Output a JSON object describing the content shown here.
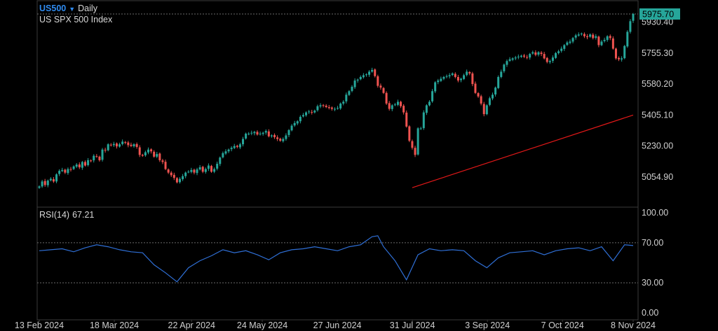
{
  "header": {
    "symbol": "US500",
    "symbol_arrow": "▼",
    "timeframe": "Daily",
    "instrument_name": "US SPX 500 Index"
  },
  "rsi_panel": {
    "label": "RSI(14)",
    "value": "67.21"
  },
  "colors": {
    "background": "#000000",
    "up_candle": "#26a69a",
    "down_candle": "#ef5350",
    "trend_line": "#e01818",
    "rsi_line": "#2f6fd6",
    "last_price_bg": "#26a69a",
    "grid_dotted": "#6a6a6a",
    "frame": "#3a3a3a",
    "symbol_blue": "#2f8bf0"
  },
  "chart_data": [
    {
      "type": "candlestick",
      "title": "",
      "ylim": [
        4990,
        6020
      ],
      "y_ticks": [
        "5930.40",
        "5755.30",
        "5580.20",
        "5405.10",
        "5230.00",
        "5054.90"
      ],
      "last_price": "5975.70",
      "x_ticks": [
        "13 Feb 2024",
        "18 Mar 2024",
        "22 Apr 2024",
        "24 May 2024",
        "27 Jun 2024",
        "31 Jul 2024",
        "3 Sep 2024",
        "7 Oct 2024",
        "8 Nov 2024"
      ],
      "x_tick_days": [
        0,
        34,
        69,
        101,
        135,
        169,
        203,
        237,
        269
      ],
      "closes": [
        [
          0,
          5002
        ],
        [
          1,
          5030
        ],
        [
          2,
          5010
        ],
        [
          3,
          5035
        ],
        [
          4,
          5045
        ],
        [
          5,
          5030
        ],
        [
          6,
          5070
        ],
        [
          7,
          5090
        ],
        [
          8,
          5095
        ],
        [
          9,
          5080
        ],
        [
          10,
          5100
        ],
        [
          11,
          5098
        ],
        [
          12,
          5115
        ],
        [
          13,
          5125
        ],
        [
          14,
          5110
        ],
        [
          15,
          5140
        ],
        [
          16,
          5120
        ],
        [
          17,
          5150
        ],
        [
          18,
          5148
        ],
        [
          19,
          5175
        ],
        [
          20,
          5170
        ],
        [
          21,
          5150
        ],
        [
          22,
          5210
        ],
        [
          23,
          5205
        ],
        [
          24,
          5240
        ],
        [
          25,
          5235
        ],
        [
          26,
          5242
        ],
        [
          27,
          5228
        ],
        [
          28,
          5240
        ],
        [
          29,
          5255
        ],
        [
          30,
          5250
        ],
        [
          31,
          5235
        ],
        [
          32,
          5230
        ],
        [
          33,
          5240
        ],
        [
          34,
          5225
        ],
        [
          35,
          5180
        ],
        [
          36,
          5175
        ],
        [
          37,
          5195
        ],
        [
          38,
          5210
        ],
        [
          39,
          5200
        ],
        [
          40,
          5170
        ],
        [
          41,
          5185
        ],
        [
          42,
          5150
        ],
        [
          43,
          5140
        ],
        [
          44,
          5100
        ],
        [
          45,
          5080
        ],
        [
          46,
          5065
        ],
        [
          47,
          5050
        ],
        [
          48,
          5025
        ],
        [
          49,
          5045
        ],
        [
          50,
          5060
        ],
        [
          51,
          5080
        ],
        [
          52,
          5085
        ],
        [
          53,
          5095
        ],
        [
          54,
          5080
        ],
        [
          55,
          5098
        ],
        [
          56,
          5110
        ],
        [
          57,
          5085
        ],
        [
          58,
          5100
        ],
        [
          59,
          5120
        ],
        [
          60,
          5085
        ],
        [
          61,
          5100
        ],
        [
          62,
          5130
        ],
        [
          63,
          5165
        ],
        [
          64,
          5190
        ],
        [
          65,
          5200
        ],
        [
          66,
          5210
        ],
        [
          67,
          5220
        ],
        [
          68,
          5230
        ],
        [
          69,
          5225
        ],
        [
          70,
          5240
        ],
        [
          71,
          5270
        ],
        [
          72,
          5300
        ],
        [
          73,
          5300
        ],
        [
          74,
          5305
        ],
        [
          75,
          5310
        ],
        [
          76,
          5295
        ],
        [
          77,
          5300
        ],
        [
          78,
          5305
        ],
        [
          79,
          5315
        ],
        [
          80,
          5285
        ],
        [
          81,
          5290
        ],
        [
          82,
          5280
        ],
        [
          83,
          5270
        ],
        [
          84,
          5260
        ],
        [
          85,
          5270
        ],
        [
          86,
          5290
        ],
        [
          87,
          5320
        ],
        [
          88,
          5345
        ],
        [
          89,
          5360
        ],
        [
          90,
          5370
        ],
        [
          91,
          5395
        ],
        [
          92,
          5405
        ],
        [
          93,
          5420
        ],
        [
          94,
          5425
        ],
        [
          95,
          5420
        ],
        [
          96,
          5430
        ],
        [
          97,
          5455
        ],
        [
          98,
          5460
        ],
        [
          99,
          5460
        ],
        [
          100,
          5450
        ],
        [
          101,
          5445
        ],
        [
          102,
          5440
        ],
        [
          103,
          5440
        ],
        [
          104,
          5445
        ],
        [
          105,
          5470
        ],
        [
          106,
          5480
        ],
        [
          107,
          5520
        ],
        [
          108,
          5540
        ],
        [
          109,
          5565
        ],
        [
          110,
          5600
        ],
        [
          111,
          5605
        ],
        [
          112,
          5620
        ],
        [
          113,
          5630
        ],
        [
          114,
          5635
        ],
        [
          115,
          5650
        ],
        [
          116,
          5660
        ],
        [
          117,
          5625
        ],
        [
          118,
          5570
        ],
        [
          119,
          5560
        ],
        [
          120,
          5530
        ],
        [
          121,
          5470
        ],
        [
          122,
          5440
        ],
        [
          123,
          5460
        ],
        [
          124,
          5465
        ],
        [
          125,
          5480
        ],
        [
          126,
          5455
        ],
        [
          127,
          5420
        ],
        [
          128,
          5340
        ],
        [
          129,
          5260
        ],
        [
          130,
          5220
        ],
        [
          131,
          5180
        ],
        [
          132,
          5330
        ],
        [
          133,
          5330
        ],
        [
          134,
          5420
        ],
        [
          135,
          5460
        ],
        [
          136,
          5480
        ],
        [
          137,
          5540
        ],
        [
          138,
          5590
        ],
        [
          139,
          5600
        ],
        [
          140,
          5610
        ],
        [
          141,
          5620
        ],
        [
          142,
          5625
        ],
        [
          143,
          5630
        ],
        [
          144,
          5640
        ],
        [
          145,
          5620
        ],
        [
          146,
          5600
        ],
        [
          147,
          5610
        ],
        [
          148,
          5630
        ],
        [
          149,
          5650
        ],
        [
          150,
          5640
        ],
        [
          151,
          5580
        ],
        [
          152,
          5530
        ],
        [
          153,
          5510
        ],
        [
          154,
          5470
        ],
        [
          155,
          5410
        ],
        [
          156,
          5460
        ],
        [
          157,
          5500
        ],
        [
          158,
          5520
        ],
        [
          159,
          5560
        ],
        [
          160,
          5620
        ],
        [
          161,
          5650
        ],
        [
          162,
          5690
        ],
        [
          163,
          5710
        ],
        [
          164,
          5720
        ],
        [
          165,
          5725
        ],
        [
          166,
          5730
        ],
        [
          167,
          5735
        ],
        [
          168,
          5740
        ],
        [
          169,
          5735
        ],
        [
          170,
          5730
        ],
        [
          171,
          5750
        ],
        [
          172,
          5760
        ],
        [
          173,
          5745
        ],
        [
          174,
          5760
        ],
        [
          175,
          5750
        ],
        [
          176,
          5725
        ],
        [
          177,
          5705
        ],
        [
          178,
          5710
        ],
        [
          179,
          5730
        ],
        [
          180,
          5755
        ],
        [
          181,
          5765
        ],
        [
          182,
          5780
        ],
        [
          183,
          5800
        ],
        [
          184,
          5815
        ],
        [
          185,
          5820
        ],
        [
          186,
          5840
        ],
        [
          187,
          5855
        ],
        [
          188,
          5860
        ],
        [
          189,
          5865
        ],
        [
          190,
          5850
        ],
        [
          191,
          5845
        ],
        [
          192,
          5860
        ],
        [
          193,
          5840
        ],
        [
          194,
          5850
        ],
        [
          195,
          5800
        ],
        [
          196,
          5820
        ],
        [
          197,
          5830
        ],
        [
          198,
          5850
        ],
        [
          199,
          5840
        ],
        [
          200,
          5780
        ],
        [
          201,
          5725
        ],
        [
          202,
          5720
        ],
        [
          203,
          5725
        ],
        [
          204,
          5795
        ],
        [
          205,
          5875
        ],
        [
          206,
          5935
        ],
        [
          207,
          5975.7
        ]
      ]
    },
    {
      "type": "line",
      "title": "",
      "series": [
        {
          "x": [
            130,
            207
          ],
          "values": [
            4995,
            5405
          ]
        }
      ]
    },
    {
      "type": "line",
      "title": "RSI(14)",
      "ylim": [
        0,
        100
      ],
      "y_ticks": [
        "100.00",
        "70.00",
        "30.00",
        "0.00"
      ],
      "reference_lines": [
        70,
        30
      ],
      "series": [
        {
          "x": [
            0,
            4,
            8,
            12,
            16,
            20,
            24,
            28,
            32,
            36,
            40,
            44,
            48,
            52,
            56,
            60,
            64,
            68,
            72,
            76,
            80,
            84,
            88,
            92,
            96,
            100,
            104,
            108,
            112,
            116,
            118,
            120,
            124,
            128,
            132,
            136,
            140,
            144,
            148,
            152,
            156,
            160,
            164,
            168,
            172,
            176,
            180,
            184,
            188,
            192,
            196,
            200,
            204,
            207
          ],
          "values": [
            62,
            63,
            64,
            61,
            65,
            68,
            66,
            63,
            61,
            60,
            48,
            40,
            31,
            45,
            52,
            57,
            63,
            60,
            62,
            58,
            53,
            60,
            63,
            64,
            66,
            64,
            62,
            66,
            68,
            76,
            77,
            66,
            52,
            33,
            58,
            64,
            62,
            63,
            62,
            52,
            45,
            55,
            60,
            61,
            62,
            58,
            62,
            64,
            65,
            62,
            66,
            52,
            68,
            67.21
          ]
        }
      ]
    }
  ]
}
